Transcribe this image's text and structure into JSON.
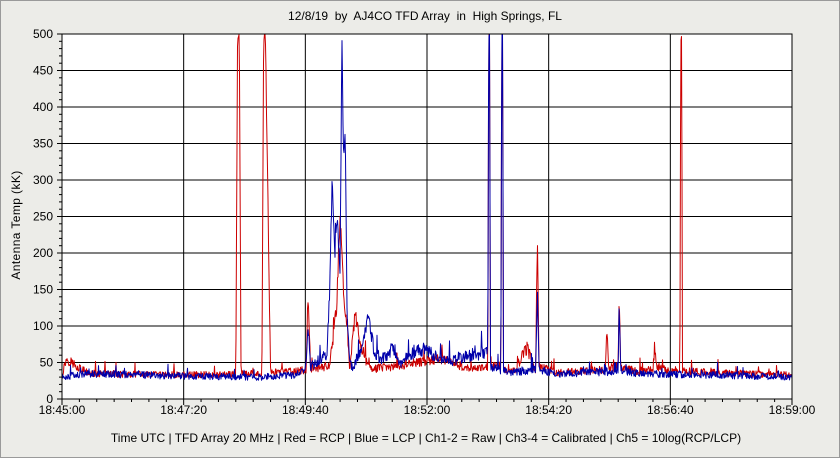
{
  "chart_data": {
    "type": "line",
    "title": "12/8/19  by  AJ4CO TFD Array  in  High Springs, FL",
    "ylabel": "Antenna Temp (kK)",
    "xlabel": "Time UTC | TFD Array 20 MHz | Red = RCP | Blue = LCP | Ch1-2 = Raw | Ch3-4 = Calibrated | Ch5 = 10log(RCP/LCP)",
    "ylim": [
      0,
      500
    ],
    "yticks": [
      "0",
      "50",
      "100",
      "150",
      "200",
      "250",
      "300",
      "350",
      "400",
      "450",
      "500"
    ],
    "xlim": [
      "18:45:00",
      "18:59:00"
    ],
    "xticks": [
      "18:45:00",
      "18:47:20",
      "18:49:40",
      "18:52:00",
      "18:54:20",
      "18:56:40",
      "18:59:00"
    ],
    "grid": true,
    "series": [
      {
        "name": "RCP",
        "color": "#cc0000",
        "baseline": 33,
        "x": [
          "18:45:00",
          "18:45:05",
          "18:45:30",
          "18:47:00",
          "18:48:20",
          "18:48:22",
          "18:48:24",
          "18:48:26",
          "18:48:50",
          "18:48:52",
          "18:48:54",
          "18:49:00",
          "18:49:30",
          "18:49:41",
          "18:49:43",
          "18:49:46",
          "18:50:08",
          "18:50:12",
          "18:50:16",
          "18:50:20",
          "18:50:24",
          "18:50:28",
          "18:50:31",
          "18:50:34",
          "18:50:37",
          "18:50:44",
          "18:50:52",
          "18:51:00",
          "18:51:30",
          "18:51:50",
          "18:52:10",
          "18:52:30",
          "18:52:50",
          "18:53:10",
          "18:53:11",
          "18:53:12",
          "18:53:13",
          "18:53:25",
          "18:53:26",
          "18:53:27",
          "18:53:28",
          "18:53:40",
          "18:53:55",
          "18:54:05",
          "18:54:07",
          "18:54:09",
          "18:54:30",
          "18:55:00",
          "18:55:25",
          "18:55:27",
          "18:55:29",
          "18:55:40",
          "18:55:41",
          "18:55:43",
          "18:56:00",
          "18:56:20",
          "18:56:22",
          "18:56:24",
          "18:56:40",
          "18:56:51",
          "18:56:52",
          "18:56:53",
          "18:56:54",
          "18:57:30",
          "18:59:00"
        ],
        "y": [
          33,
          55,
          35,
          33,
          34,
          500,
          500,
          35,
          34,
          500,
          500,
          36,
          38,
          40,
          142,
          42,
          45,
          85,
          125,
          250,
          150,
          95,
          40,
          75,
          115,
          70,
          45,
          42,
          45,
          50,
          55,
          50,
          40,
          45,
          500,
          500,
          45,
          45,
          500,
          500,
          40,
          38,
          70,
          40,
          225,
          45,
          36,
          38,
          40,
          92,
          40,
          45,
          142,
          45,
          38,
          40,
          72,
          45,
          38,
          40,
          500,
          500,
          38,
          36,
          33
        ]
      },
      {
        "name": "LCP",
        "color": "#0000aa",
        "baseline": 30,
        "x": [
          "18:45:00",
          "18:45:30",
          "18:47:00",
          "18:48:50",
          "18:49:00",
          "18:49:30",
          "18:49:41",
          "18:49:43",
          "18:49:46",
          "18:50:05",
          "18:50:08",
          "18:50:11",
          "18:50:14",
          "18:50:17",
          "18:50:20",
          "18:50:22",
          "18:50:24",
          "18:50:26",
          "18:50:28",
          "18:50:31",
          "18:50:35",
          "18:50:40",
          "18:50:45",
          "18:50:52",
          "18:51:00",
          "18:51:10",
          "18:51:20",
          "18:51:30",
          "18:51:50",
          "18:52:10",
          "18:52:30",
          "18:52:50",
          "18:53:10",
          "18:53:11",
          "18:53:12",
          "18:53:13",
          "18:53:25",
          "18:53:26",
          "18:53:27",
          "18:53:28",
          "18:53:40",
          "18:54:05",
          "18:54:07",
          "18:54:09",
          "18:54:30",
          "18:55:40",
          "18:55:41",
          "18:55:43",
          "18:56:00",
          "18:56:40",
          "18:57:30",
          "18:59:00"
        ],
        "y": [
          30,
          35,
          32,
          30,
          31,
          33,
          45,
          105,
          45,
          60,
          150,
          305,
          200,
          245,
          160,
          500,
          330,
          360,
          120,
          50,
          40,
          58,
          70,
          115,
          60,
          55,
          68,
          50,
          70,
          60,
          52,
          60,
          65,
          500,
          500,
          45,
          40,
          500,
          500,
          38,
          36,
          42,
          150,
          40,
          34,
          38,
          132,
          40,
          35,
          34,
          33,
          30
        ]
      }
    ]
  }
}
